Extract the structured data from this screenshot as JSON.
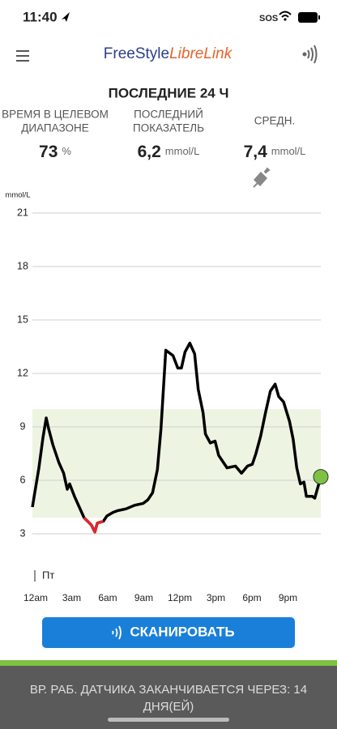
{
  "status_bar": {
    "time": "11:40",
    "sos": "SOS"
  },
  "header": {
    "brand_1": "FreeStyle",
    "brand_2": "LibreLink"
  },
  "title": "ПОСЛЕДНИЕ 24 Ч",
  "stats": [
    {
      "label_lines": [
        "ВРЕМЯ В ЦЕЛЕВОМ",
        "ДИАПАЗОНЕ"
      ],
      "value": "73",
      "unit": "%"
    },
    {
      "label_lines": [
        "ПОСЛЕДНИЙ",
        "ПОКАЗАТЕЛЬ"
      ],
      "value": "6,2",
      "unit": "mmol/L"
    },
    {
      "label_lines": [
        "СРЕДН."
      ],
      "value": "7,4",
      "unit": "mmol/L"
    }
  ],
  "chart_data": {
    "type": "line",
    "y_label": "mmol/L",
    "day_label": "Пт",
    "ylim": [
      0,
      21
    ],
    "yticks": [
      3,
      6,
      9,
      12,
      15,
      18,
      21
    ],
    "grid": true,
    "xlim": [
      0,
      24
    ],
    "xticks": [
      {
        "value": 0,
        "label": "12am"
      },
      {
        "value": 3,
        "label": "3am"
      },
      {
        "value": 6,
        "label": "6am"
      },
      {
        "value": 9,
        "label": "9am"
      },
      {
        "value": 12,
        "label": "12pm"
      },
      {
        "value": 15,
        "label": "3pm"
      },
      {
        "value": 18,
        "label": "6pm"
      },
      {
        "value": 21,
        "label": "9pm"
      }
    ],
    "target_range": [
      3.9,
      10.0
    ],
    "target_color": "#eef4e2",
    "color": "#000000",
    "low_color": "#e0262f",
    "marker_color": "#7dc242",
    "x": [
      0,
      0.54,
      0.88,
      1.15,
      1.35,
      1.7,
      2.2,
      2.6,
      2.9,
      3.1,
      3.5,
      3.9,
      4.3,
      4.9,
      5.2,
      5.4,
      5.9,
      6.2,
      6.7,
      7.1,
      7.8,
      8.5,
      9.2,
      9.6,
      10.0,
      10.4,
      10.7,
      10.9,
      11.1,
      11.7,
      12.1,
      12.4,
      12.7,
      13.1,
      13.5,
      13.8,
      14.2,
      14.4,
      14.8,
      15.2,
      15.5,
      15.9,
      16.2,
      16.9,
      17.4,
      17.9,
      18.3,
      18.6,
      19.0,
      19.4,
      19.8,
      20.2,
      20.5,
      20.9,
      21.4,
      21.7,
      22.0,
      22.3,
      22.6,
      22.8,
      23.3,
      23.5,
      24.0
    ],
    "values": [
      4.5,
      6.7,
      8.4,
      9.5,
      8.9,
      8.0,
      7.0,
      6.4,
      5.5,
      5.8,
      5.1,
      4.5,
      3.9,
      3.5,
      3.1,
      3.6,
      3.7,
      4.0,
      4.2,
      4.3,
      4.4,
      4.6,
      4.7,
      4.9,
      5.3,
      6.6,
      8.9,
      11.1,
      13.3,
      13.0,
      12.3,
      12.3,
      13.2,
      13.7,
      13.1,
      11.1,
      9.8,
      8.6,
      8.1,
      8.2,
      7.4,
      7.0,
      6.7,
      6.8,
      6.4,
      6.8,
      6.9,
      7.5,
      8.5,
      9.8,
      11.0,
      11.4,
      10.7,
      10.4,
      9.3,
      8.3,
      6.7,
      5.8,
      5.9,
      5.1,
      5.1,
      5.0,
      6.2
    ]
  },
  "button": "СКАНИРОВАТЬ",
  "banner_lines": [
    "ВР. РАБ. ДАТЧИКА ЗАКАНЧИВАЕТСЯ ЧЕРЕЗ: 14",
    "ДНЯ(ЕЙ)"
  ]
}
